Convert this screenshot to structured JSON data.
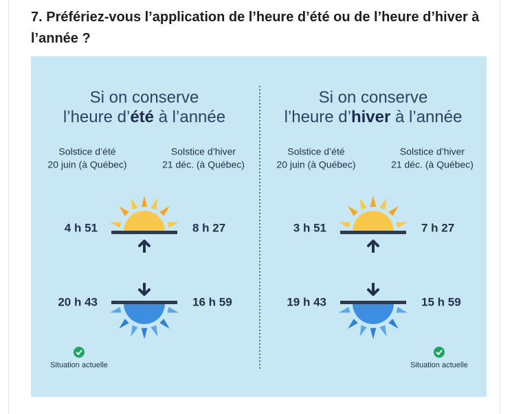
{
  "question": "7. Préfériez-vous l’application de l’heure d’été ou de l’heure d’hiver à l’année ?",
  "panels": [
    {
      "title_line1": "Si on conserve",
      "title_pre": "l’heure d’",
      "title_bold": "été",
      "title_post": " à l’année",
      "summer_label": "Solstice d’été",
      "summer_date": "20 juin (à Québec)",
      "winter_label": "Solstice d’hiver",
      "winter_date": "21 déc. (à Québec)",
      "summer_sunrise": "4 h 51",
      "winter_sunrise": "8 h 27",
      "summer_sunset": "20 h 43",
      "winter_sunset": "16 h 59",
      "status": "Situation actuelle"
    },
    {
      "title_line1": "Si on conserve",
      "title_pre": "l’heure d’",
      "title_bold": "hiver",
      "title_post": " à l’année",
      "summer_label": "Solstice d’été",
      "summer_date": "20 juin (à Québec)",
      "winter_label": "Solstice d’hiver",
      "winter_date": "21 déc. (à Québec)",
      "summer_sunrise": "3 h 51",
      "winter_sunrise": "7 h 27",
      "summer_sunset": "19 h 43",
      "winter_sunset": "15 h 59",
      "status": "Situation actuelle"
    }
  ]
}
